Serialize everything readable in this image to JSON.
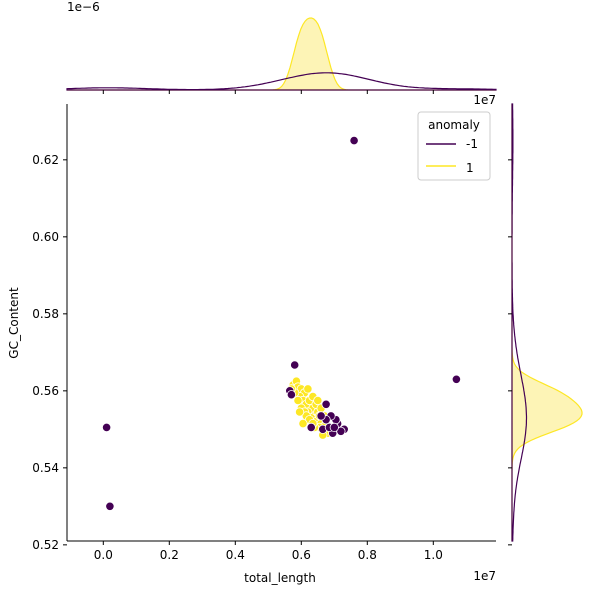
{
  "chart_data": {
    "type": "scatter",
    "xlabel": "total_length",
    "ylabel": "GC_Content",
    "x_offset_label": "1e7",
    "y_offset_label": "1e7",
    "top_marginal_offset_label": "1e−6",
    "xlim": [
      -1100000,
      11900000
    ],
    "ylim": [
      0.521,
      0.6345
    ],
    "x_ticks": [
      0.0,
      0.2,
      0.4,
      0.6,
      0.8,
      1.0
    ],
    "x_tick_labels": [
      "0.0",
      "0.2",
      "0.4",
      "0.6",
      "0.8",
      "1.0"
    ],
    "y_ticks": [
      0.52,
      0.54,
      0.56,
      0.58,
      0.6,
      0.62
    ],
    "y_tick_labels": [
      "0.52",
      "0.54",
      "0.56",
      "0.58",
      "0.60",
      "0.62"
    ],
    "legend": {
      "title": "anomaly",
      "placement": "top-right",
      "entries": [
        {
          "label": "-1",
          "color": "#440154"
        },
        {
          "label": "1",
          "color": "#fde725"
        }
      ]
    },
    "colors": {
      "anomaly": "#440154",
      "normal": "#fde725",
      "normal_fill": "#fdf4b6"
    },
    "series": [
      {
        "name": "-1",
        "points": [
          [
            7600000,
            0.625
          ],
          [
            5800000,
            0.5667
          ],
          [
            10700000,
            0.563
          ],
          [
            100000,
            0.5505
          ],
          [
            200000,
            0.53
          ],
          [
            6750000,
            0.5565
          ],
          [
            7300000,
            0.55
          ],
          [
            7100000,
            0.5515
          ],
          [
            6950000,
            0.549
          ],
          [
            6650000,
            0.55
          ],
          [
            6850000,
            0.5505
          ],
          [
            7200000,
            0.5495
          ],
          [
            7050000,
            0.5525
          ],
          [
            6300000,
            0.5505
          ],
          [
            6900000,
            0.5535
          ],
          [
            5650000,
            0.56
          ],
          [
            5700000,
            0.559
          ],
          [
            6750000,
            0.5525
          ],
          [
            7000000,
            0.5505
          ],
          [
            6600000,
            0.5535
          ]
        ]
      },
      {
        "name": "1",
        "points": [
          [
            5750000,
            0.5615
          ],
          [
            5850000,
            0.5625
          ],
          [
            5900000,
            0.561
          ],
          [
            6000000,
            0.5605
          ],
          [
            6100000,
            0.5595
          ],
          [
            5950000,
            0.5585
          ],
          [
            6050000,
            0.5575
          ],
          [
            6150000,
            0.5565
          ],
          [
            6250000,
            0.5575
          ],
          [
            6350000,
            0.5555
          ],
          [
            6200000,
            0.5545
          ],
          [
            6400000,
            0.5535
          ],
          [
            6500000,
            0.5545
          ],
          [
            6300000,
            0.553
          ],
          [
            6450000,
            0.552
          ],
          [
            6600000,
            0.5515
          ],
          [
            6550000,
            0.5505
          ],
          [
            6700000,
            0.5495
          ],
          [
            6800000,
            0.549
          ],
          [
            6650000,
            0.5485
          ],
          [
            6000000,
            0.5555
          ],
          [
            5900000,
            0.5575
          ],
          [
            5800000,
            0.5595
          ],
          [
            6100000,
            0.5545
          ],
          [
            6350000,
            0.5585
          ],
          [
            6200000,
            0.5605
          ],
          [
            6450000,
            0.5565
          ],
          [
            6500000,
            0.5575
          ],
          [
            5700000,
            0.5605
          ],
          [
            6600000,
            0.5555
          ],
          [
            6150000,
            0.5535
          ],
          [
            6400000,
            0.5505
          ],
          [
            6750000,
            0.5515
          ],
          [
            6700000,
            0.5535
          ],
          [
            6250000,
            0.5525
          ],
          [
            5950000,
            0.5545
          ],
          [
            6050000,
            0.5515
          ],
          [
            6550000,
            0.5535
          ],
          [
            6350000,
            0.5515
          ],
          [
            6850000,
            0.5505
          ]
        ]
      }
    ]
  }
}
